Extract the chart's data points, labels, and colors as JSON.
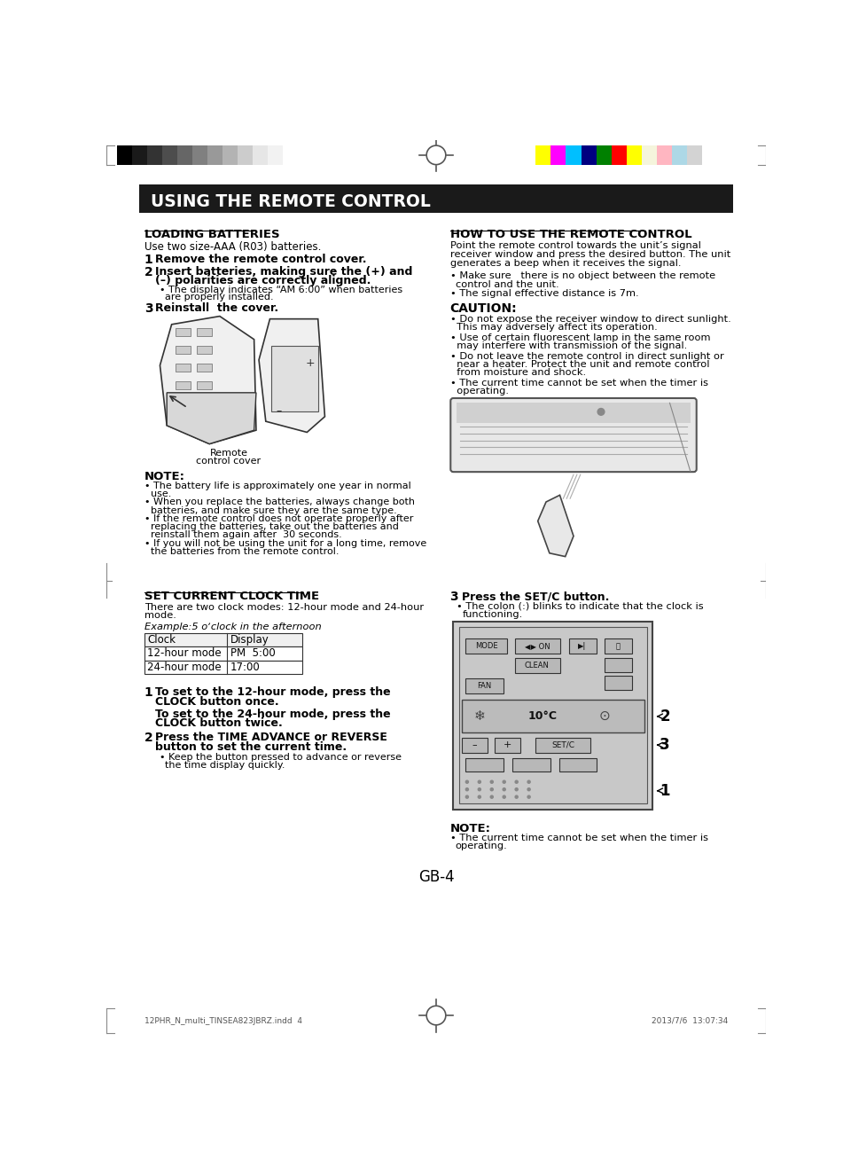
{
  "page_bg": "#ffffff",
  "header_bar_color": "#1a1a1a",
  "header_text": "USING THE REMOTE CONTROL",
  "header_text_color": "#ffffff",
  "body_text_color": "#000000",
  "section_left_title": "LOADING BATTERIES",
  "section_right_title": "HOW TO USE THE REMOTE CONTROL",
  "footer_text": "GB-4",
  "footer_small_left": "12PHR_N_multi_TINSEA823JBRZ.indd  4",
  "footer_small_right": "2013/7/6  13:07:34",
  "grayscale_colors": [
    "#000000",
    "#1a1a1a",
    "#333333",
    "#4d4d4d",
    "#666666",
    "#808080",
    "#999999",
    "#b3b3b3",
    "#cccccc",
    "#e6e6e6",
    "#f2f2f2",
    "#ffffff"
  ],
  "color_bars": [
    "#ffff00",
    "#ff00ff",
    "#00bfff",
    "#000080",
    "#008000",
    "#ff0000",
    "#ffff00",
    "#f5f5dc",
    "#ffb6c1",
    "#add8e6",
    "#d3d3d3",
    "#ffffff"
  ]
}
